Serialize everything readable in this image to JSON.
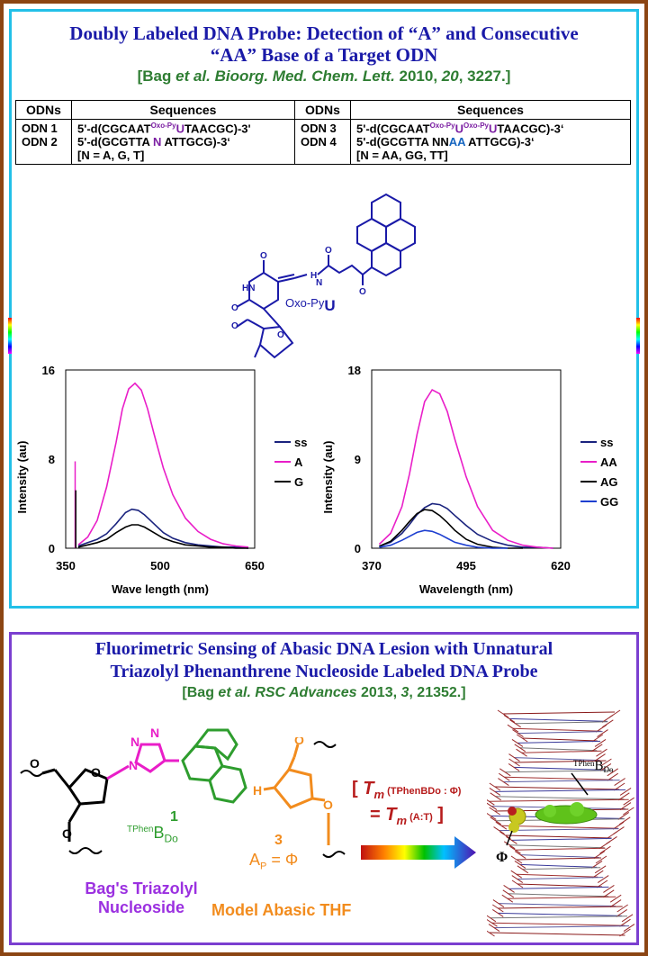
{
  "panel1": {
    "title_line1": "Doubly Labeled DNA Probe: Detection of “A” and Consecutive",
    "title_line2": "“AA” Base of a Target ODN",
    "cite_pre": "[Bag ",
    "cite_etal": "et al. Bioorg. Med. Chem. Lett.",
    "cite_year": " 2010, ",
    "cite_vol": "20",
    "cite_post": ", 3227.]",
    "table": {
      "h_odns": "ODNs",
      "h_seq": "Sequences",
      "odn1": "ODN 1",
      "odn2": "ODN 2",
      "odn3": "ODN 3",
      "odn4": "ODN 4",
      "s1a": "5'-d(CGCAAT",
      "s1sup": "Oxo-Py",
      "s1u": "U",
      "s1b": "TAACGC)-3'",
      "s2a": "5'-d(GCGTTA ",
      "s2n": "N",
      "s2b": " ATTGCG)-3‘",
      "s2note": "[N = A, G, T]",
      "s3a": "5'-d(CGCAAT",
      "s3sup1": "Oxo-Py",
      "s3u1": "U",
      "s3sup2": "Oxo-Py",
      "s3u2": "U",
      "s3b": "TAACGC)-3‘",
      "s4a": "5'-d(GCGTTA NN",
      "s4aa": "AA",
      "s4b": " ATTGCG)-3‘",
      "s4note": "[N = AA, GG, TT]"
    },
    "molecule": {
      "label": "Oxo-Py",
      "label_u": "U",
      "hn": "HN",
      "n": "N",
      "o1": "O",
      "o2": "O",
      "h": "H",
      "o3": "O",
      "o4": "O",
      "o5": "O",
      "o6": "O"
    }
  },
  "chart_data": [
    {
      "type": "line",
      "xlabel": "Wave length (nm)",
      "ylabel": "Intensity (au)",
      "xlim": [
        350,
        650
      ],
      "ylim": [
        0,
        16
      ],
      "xticks": [
        "350",
        "500",
        "650"
      ],
      "yticks": [
        "0",
        "8",
        "16"
      ],
      "legend_position": "right",
      "series": [
        {
          "name": "ss",
          "color": "#1a237e",
          "x": [
            370,
            385,
            400,
            415,
            430,
            445,
            455,
            465,
            475,
            490,
            505,
            520,
            540,
            560,
            580,
            600,
            620,
            640
          ],
          "values": [
            0.2,
            0.5,
            0.8,
            1.3,
            2.2,
            3.2,
            3.5,
            3.4,
            3.0,
            2.2,
            1.4,
            0.9,
            0.5,
            0.3,
            0.2,
            0.1,
            0.1,
            0.0
          ]
        },
        {
          "name": "A",
          "color": "#e91ec8",
          "x": [
            370,
            385,
            400,
            415,
            430,
            440,
            450,
            460,
            470,
            480,
            490,
            505,
            520,
            540,
            560,
            580,
            600,
            620,
            640
          ],
          "values": [
            0.3,
            1.0,
            2.5,
            5.5,
            9.5,
            12.5,
            14.3,
            14.8,
            14.2,
            12.5,
            10.3,
            7.2,
            4.8,
            2.7,
            1.5,
            0.8,
            0.4,
            0.2,
            0.1
          ]
        },
        {
          "name": "G",
          "color": "#000000",
          "x": [
            370,
            385,
            400,
            415,
            430,
            445,
            455,
            465,
            475,
            490,
            505,
            520,
            540,
            560,
            580,
            600,
            620,
            640
          ],
          "values": [
            0.1,
            0.3,
            0.5,
            0.8,
            1.4,
            1.9,
            2.1,
            2.1,
            1.9,
            1.4,
            0.9,
            0.6,
            0.3,
            0.2,
            0.1,
            0.1,
            0.0,
            0.0
          ]
        }
      ]
    },
    {
      "type": "line",
      "xlabel": "Wavelength (nm)",
      "ylabel": "Intensity (au)",
      "xlim": [
        370,
        620
      ],
      "ylim": [
        0,
        18
      ],
      "xticks": [
        "370",
        "495",
        "620"
      ],
      "yticks": [
        "0",
        "9",
        "18"
      ],
      "legend_position": "right",
      "series": [
        {
          "name": "ss",
          "color": "#1a237e",
          "x": [
            380,
            395,
            410,
            420,
            430,
            440,
            450,
            460,
            470,
            480,
            495,
            510,
            530,
            550,
            570,
            590,
            610
          ],
          "values": [
            0.2,
            0.6,
            1.5,
            2.4,
            3.4,
            4.1,
            4.5,
            4.4,
            4.0,
            3.3,
            2.3,
            1.4,
            0.7,
            0.3,
            0.1,
            0.1,
            0.0
          ]
        },
        {
          "name": "AA",
          "color": "#e91ec8",
          "x": [
            380,
            395,
            410,
            420,
            430,
            440,
            450,
            460,
            470,
            480,
            495,
            510,
            530,
            550,
            570,
            590,
            610
          ],
          "values": [
            0.4,
            1.5,
            4.2,
            7.5,
            11.5,
            14.8,
            16.0,
            15.6,
            13.8,
            11.0,
            7.2,
            4.2,
            1.8,
            0.8,
            0.3,
            0.1,
            0.0
          ]
        },
        {
          "name": "AG",
          "color": "#000000",
          "x": [
            380,
            395,
            410,
            420,
            430,
            440,
            450,
            460,
            470,
            480,
            495,
            510,
            530,
            550,
            570
          ],
          "values": [
            0.2,
            0.7,
            1.8,
            2.7,
            3.5,
            3.9,
            3.8,
            3.3,
            2.6,
            1.8,
            0.9,
            0.4,
            0.1,
            0.0,
            0.0
          ]
        },
        {
          "name": "GG",
          "color": "#1e3fd0",
          "x": [
            380,
            395,
            410,
            420,
            430,
            440,
            450,
            460,
            470,
            480,
            495,
            510,
            530,
            550
          ],
          "values": [
            0.1,
            0.3,
            0.8,
            1.2,
            1.6,
            1.8,
            1.7,
            1.4,
            1.0,
            0.6,
            0.3,
            0.1,
            0.0,
            0.0
          ]
        }
      ]
    }
  ],
  "panel2": {
    "title_line1": "Fluorimetric Sensing of Abasic DNA Lesion with Unnatural",
    "title_line2": "Triazolyl Phenanthrene Nucleoside Labeled DNA Probe",
    "cite_pre": "[Bag ",
    "cite_etal": "et al. RSC Advances",
    "cite_year": " 2013, ",
    "cite_vol": "3",
    "cite_post": ", 21352.]",
    "compound1_number": "1",
    "compound1_sup": "TPhen",
    "compound1_b": "B",
    "compound1_sub": "Do",
    "compound1_name_l1": "Bag's Triazolyl",
    "compound1_name_l2": "Nucleoside",
    "compound3_number": "3",
    "compound3_a": "A",
    "compound3_p": "P",
    "compound3_eq": " = Φ",
    "compound3_name": "Model Abasic THF",
    "tm_open": "[",
    "tm_t": "T",
    "tm_m": "m",
    "tm_sub1": " (TPhenBDo : Φ)",
    "tm_eq": "= ",
    "tm_t2": "T",
    "tm_m2": "m",
    "tm_sub2": " (A:T)",
    "tm_close": " ]",
    "dna_label_sup": "TPhen",
    "dna_label_b": "B",
    "dna_label_sub": "Do",
    "dna_phi": "Φ",
    "mol_n1": "N",
    "mol_n2": "N",
    "mol_n3": "N",
    "mol_o1": "O",
    "mol_o2": "O",
    "mol_o3": "O",
    "mol_o4": "O",
    "mol_o5": "O",
    "mol_h": "H"
  }
}
